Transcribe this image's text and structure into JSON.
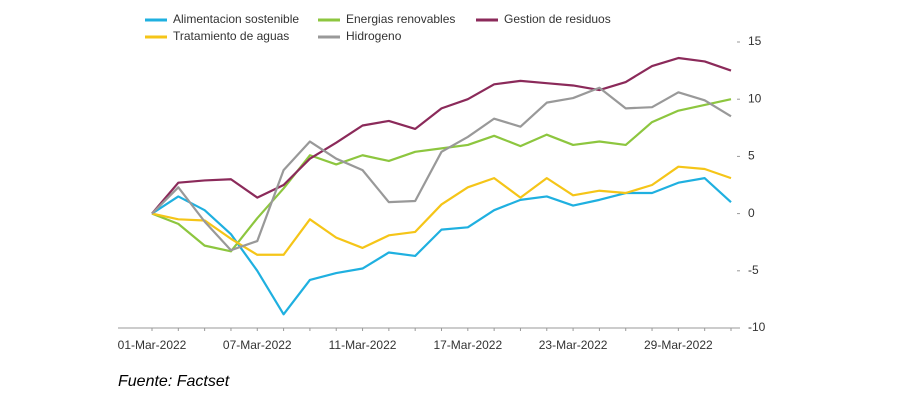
{
  "chart_data": {
    "type": "line",
    "categories": [
      "01-Mar-2022",
      null,
      null,
      null,
      "07-Mar-2022",
      null,
      null,
      null,
      "11-Mar-2022",
      null,
      null,
      null,
      "17-Mar-2022",
      null,
      null,
      null,
      "23-Mar-2022",
      null,
      null,
      null,
      "29-Mar-2022",
      null,
      null
    ],
    "series": [
      {
        "name": "Alimentacion sostenible",
        "color": "#1fb0e0",
        "values": [
          0,
          1.5,
          0.3,
          -1.8,
          -5,
          -8.8,
          -5.8,
          -5.2,
          -4.8,
          -3.4,
          -3.7,
          -1.4,
          -1.2,
          0.3,
          1.2,
          1.5,
          0.7,
          1.2,
          1.8,
          1.8,
          2.7,
          3.1,
          1.0
        ]
      },
      {
        "name": "Energias renovables",
        "color": "#8dc63f",
        "values": [
          0,
          -0.9,
          -2.8,
          -3.3,
          -0.4,
          2.2,
          5.1,
          4.3,
          5.1,
          4.6,
          5.4,
          5.7,
          6.0,
          6.8,
          5.9,
          6.9,
          6.0,
          6.3,
          6.0,
          8.0,
          9.0,
          9.5,
          10.0
        ]
      },
      {
        "name": "Gestion de residuos",
        "color": "#8b2a5a",
        "values": [
          0,
          2.7,
          2.9,
          3.0,
          1.4,
          2.5,
          4.8,
          6.2,
          7.7,
          8.1,
          7.4,
          9.2,
          10.0,
          11.3,
          11.6,
          11.4,
          11.2,
          10.8,
          11.5,
          12.9,
          13.6,
          13.3,
          12.5
        ]
      },
      {
        "name": "Tratamiento de aguas",
        "color": "#f5c518",
        "values": [
          0,
          -0.5,
          -0.6,
          -2.2,
          -3.6,
          -3.6,
          -0.5,
          -2.1,
          -3.0,
          -1.9,
          -1.6,
          0.8,
          2.3,
          3.1,
          1.4,
          3.1,
          1.6,
          2.0,
          1.8,
          2.5,
          4.1,
          3.9,
          3.1
        ]
      },
      {
        "name": "Hidrogeno",
        "color": "#999999",
        "values": [
          0,
          2.3,
          -0.7,
          -3.2,
          -2.4,
          3.8,
          6.3,
          4.8,
          3.8,
          1.0,
          1.1,
          5.4,
          6.7,
          8.3,
          7.6,
          9.7,
          10.1,
          11.0,
          9.2,
          9.3,
          10.6,
          9.9,
          8.5
        ]
      }
    ],
    "ylim": [
      -10,
      15
    ],
    "yticks": [
      -10,
      -5,
      0,
      5,
      10,
      15
    ],
    "grid": false,
    "source": "Fuente: Factset"
  }
}
